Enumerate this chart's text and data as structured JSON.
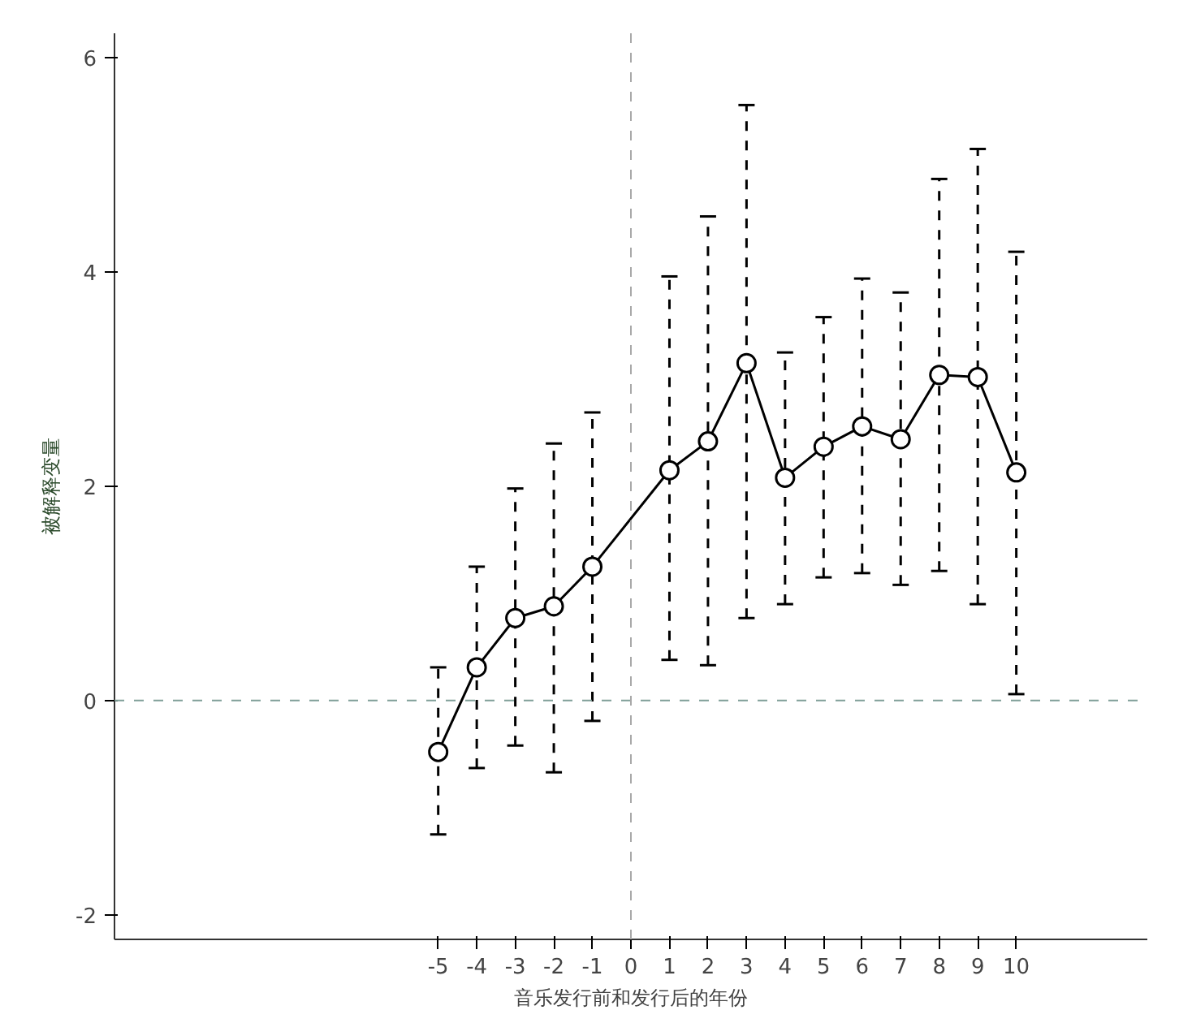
{
  "chart_data": {
    "type": "line",
    "xlabel": "音乐发行前和发行后的年份",
    "ylabel": "被解释变量",
    "x": [
      -5,
      -4,
      -3,
      -2,
      -1,
      1,
      2,
      3,
      4,
      5,
      6,
      7,
      8,
      9,
      10
    ],
    "series": [
      {
        "color": "#000000",
        "values": [
          -0.48,
          0.31,
          0.77,
          0.88,
          1.25,
          2.15,
          2.42,
          3.15,
          2.08,
          2.37,
          2.56,
          2.44,
          3.04,
          3.02,
          2.13
        ],
        "errors": [
          [
            -1.25,
            0.31
          ],
          [
            -0.63,
            1.25
          ],
          [
            -0.42,
            1.98
          ],
          [
            -0.67,
            2.4
          ],
          [
            -0.19,
            2.69
          ],
          [
            0.38,
            3.96
          ],
          [
            0.33,
            4.52
          ],
          [
            0.77,
            5.56
          ],
          [
            0.9,
            3.25
          ],
          [
            1.15,
            3.58
          ],
          [
            1.19,
            3.94
          ],
          [
            1.08,
            3.81
          ],
          [
            1.21,
            4.87
          ],
          [
            0.9,
            5.15
          ],
          [
            0.06,
            4.19
          ]
        ]
      }
    ],
    "xlim": [
      -13.4,
      13.4
    ],
    "ylim": [
      -2.23,
      6.23
    ],
    "xticks": [
      -5,
      -4,
      -3,
      -2,
      -1,
      0,
      1,
      2,
      3,
      4,
      5,
      6,
      7,
      8,
      9,
      10
    ],
    "yticks": [
      -2,
      0,
      2,
      4,
      6
    ],
    "ref_lines": [
      {
        "axis": "y",
        "value": 0,
        "color": "#7f9f98",
        "line_style": "dashed"
      },
      {
        "axis": "x",
        "value": 0,
        "color": "#a8a8a8",
        "line_style": "dashed"
      }
    ],
    "marker": "circle",
    "grid": false
  }
}
